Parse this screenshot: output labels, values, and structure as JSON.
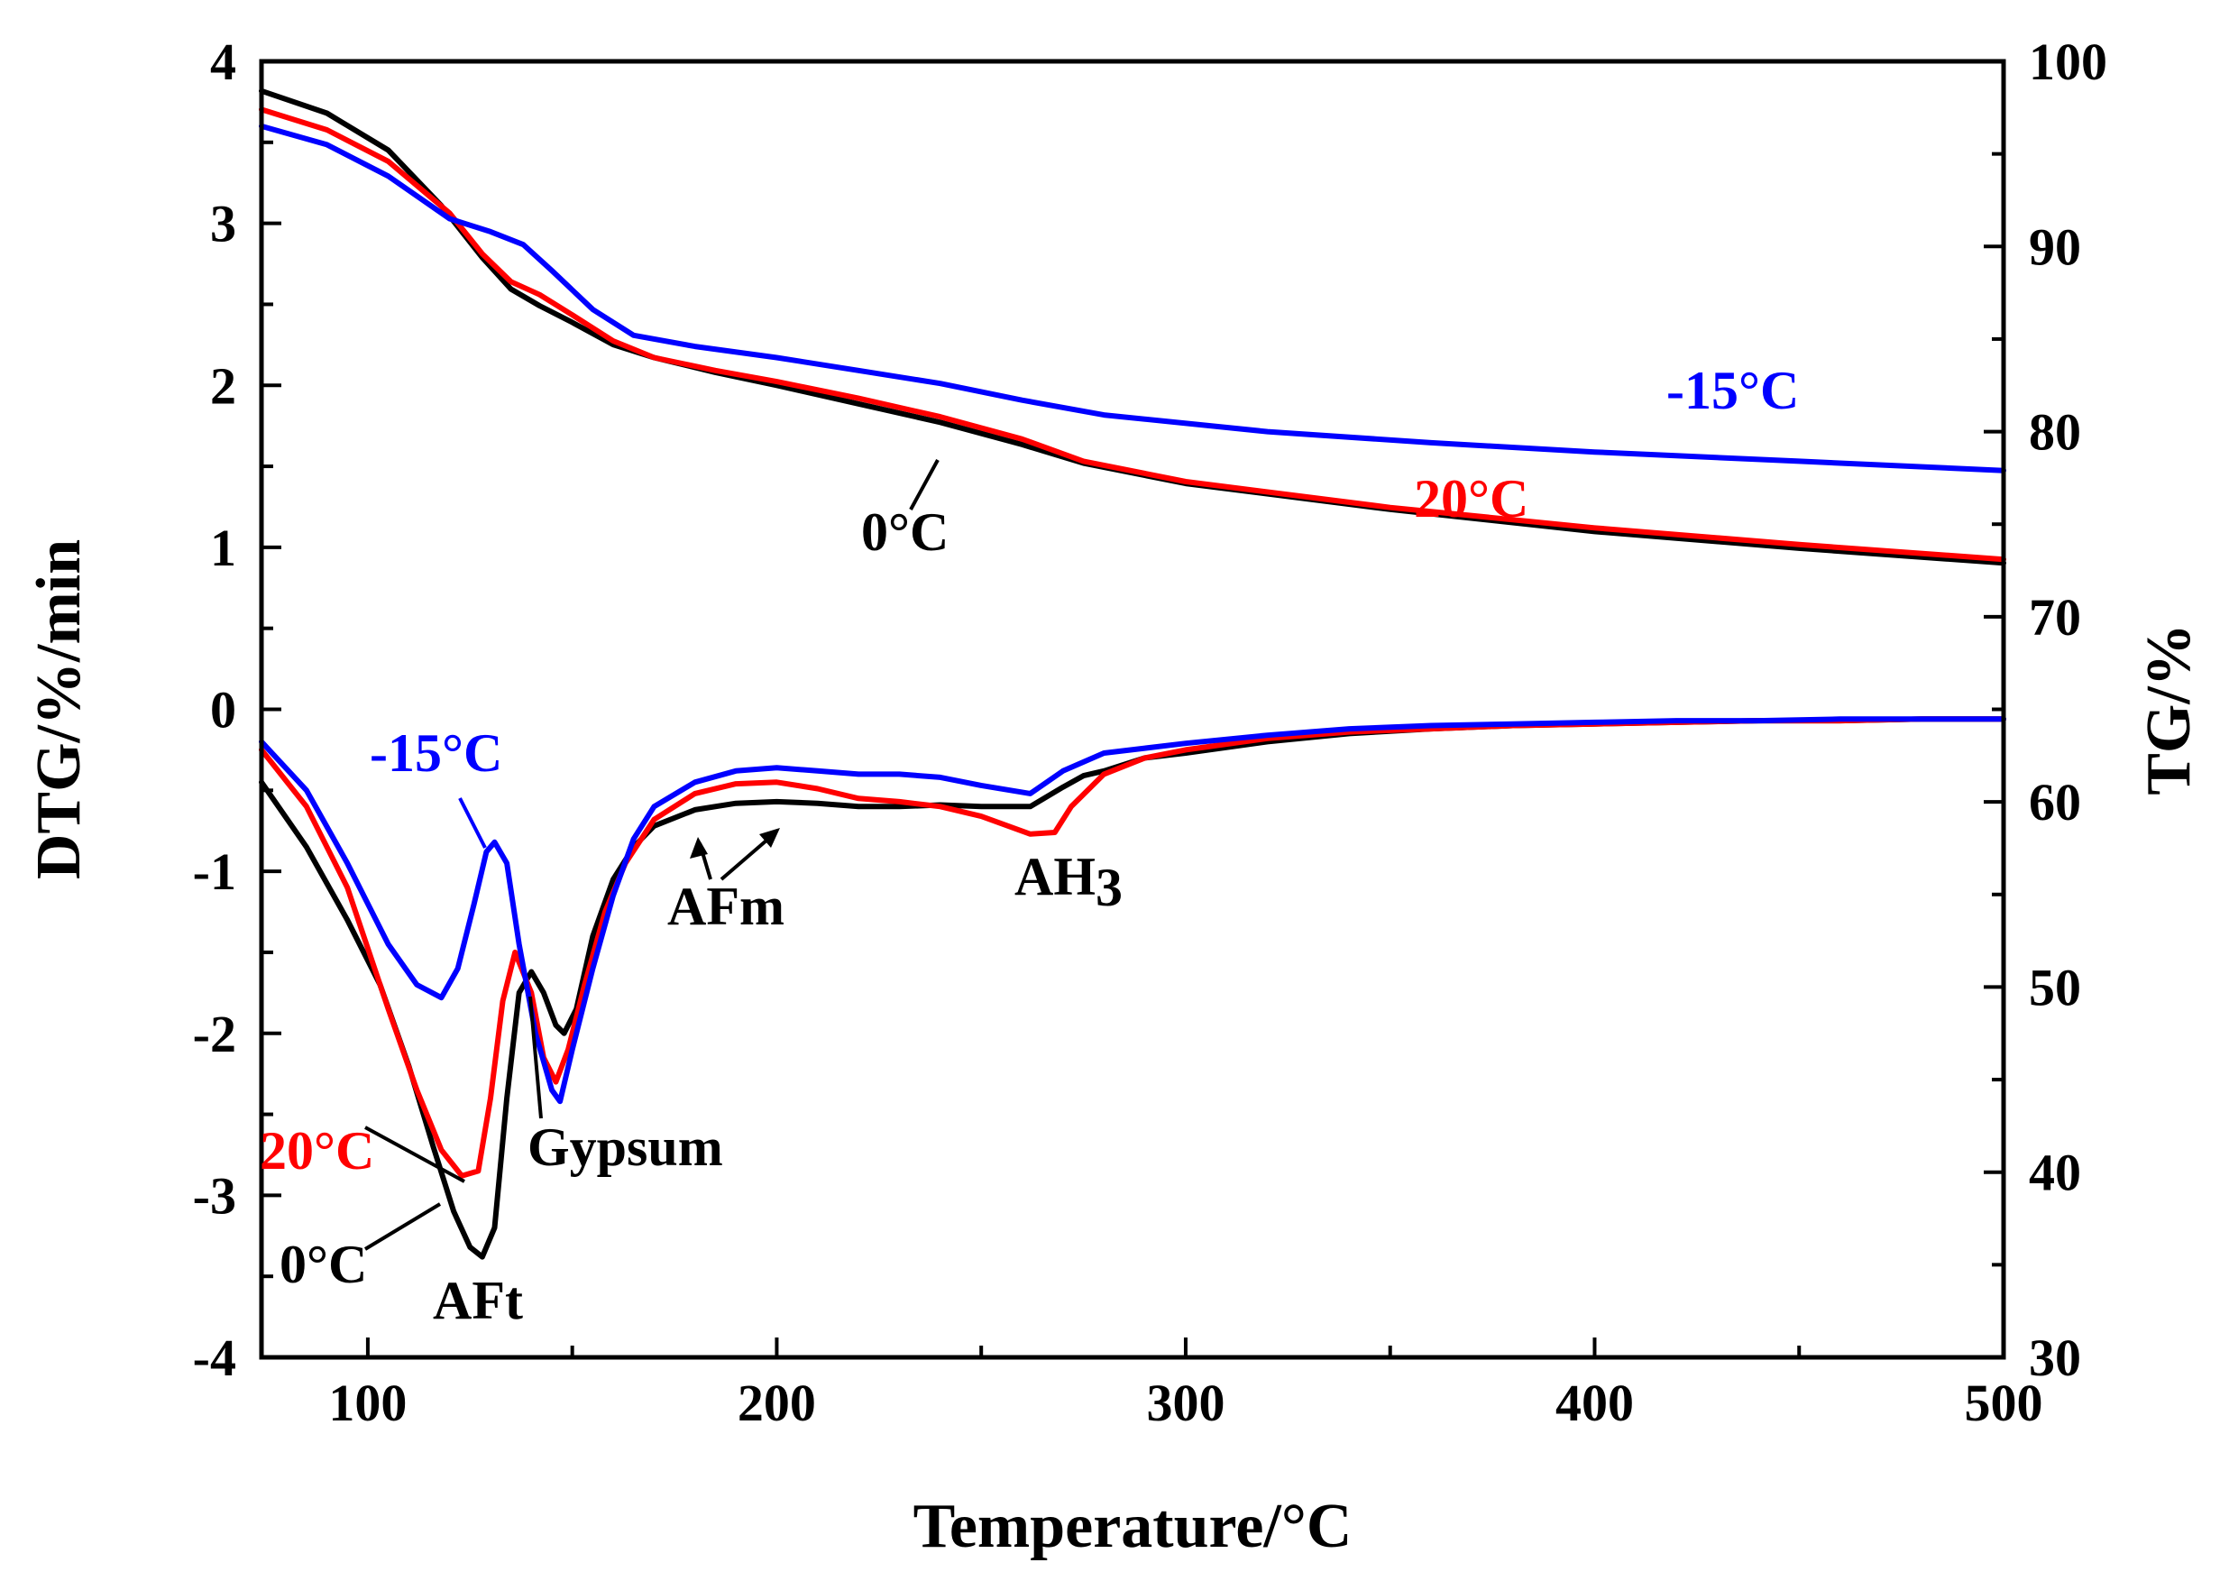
{
  "chart_data": {
    "type": "line",
    "xlabel": "Temperature/°C",
    "ylabel_left": "DTG/%/min",
    "ylabel_right": "TG/%",
    "xlim": [
      74,
      500
    ],
    "ylim_left": [
      -4,
      4
    ],
    "ylim_right": [
      30,
      100
    ],
    "x_ticks": [
      "100",
      "200",
      "300",
      "400",
      "500"
    ],
    "y_ticks_left": [
      "4",
      "3",
      "2",
      "1",
      "0",
      "-1",
      "-2",
      "-3",
      "-4"
    ],
    "y_ticks_right": [
      "100",
      "90",
      "80",
      "70",
      "60",
      "50",
      "40",
      "30"
    ],
    "colors": {
      "neg15C": "#0000ff",
      "20C": "#ff0000",
      "0C": "#000000"
    },
    "series": [
      {
        "name": "TG -15°C",
        "axis": "right",
        "color_key": "neg15C",
        "x": [
          74,
          90,
          105,
          120,
          130,
          138,
          145,
          155,
          165,
          180,
          200,
          220,
          240,
          260,
          280,
          320,
          360,
          400,
          450,
          500
        ],
        "y": [
          96.5,
          95.5,
          93.8,
          91.5,
          90.8,
          90.1,
          88.7,
          86.6,
          85.2,
          84.6,
          84.0,
          83.3,
          82.6,
          81.7,
          80.9,
          80.0,
          79.4,
          78.9,
          78.4,
          77.9
        ]
      },
      {
        "name": "TG 20°C",
        "axis": "right",
        "color_key": "20C",
        "x": [
          74,
          90,
          105,
          120,
          128,
          135,
          142,
          150,
          160,
          170,
          185,
          200,
          220,
          240,
          260,
          275,
          300,
          350,
          400,
          450,
          500
        ],
        "y": [
          97.4,
          96.3,
          94.6,
          91.8,
          89.6,
          88.1,
          87.4,
          86.3,
          84.9,
          84.0,
          83.3,
          82.7,
          81.8,
          80.8,
          79.6,
          78.4,
          77.3,
          75.9,
          74.8,
          73.9,
          73.1
        ]
      },
      {
        "name": "TG 0°C",
        "axis": "right",
        "color_key": "0C",
        "x": [
          74,
          90,
          105,
          118,
          128,
          135,
          142,
          150,
          160,
          170,
          185,
          200,
          220,
          240,
          260,
          275,
          300,
          350,
          400,
          450,
          500
        ],
        "y": [
          98.4,
          97.2,
          95.2,
          92.2,
          89.4,
          87.7,
          86.8,
          85.9,
          84.7,
          84.0,
          83.2,
          82.5,
          81.5,
          80.5,
          79.3,
          78.3,
          77.2,
          75.8,
          74.6,
          73.7,
          72.9
        ]
      },
      {
        "name": "DTG -15°C",
        "axis": "left",
        "color_key": "neg15C",
        "x": [
          74,
          85,
          95,
          105,
          112,
          118,
          122,
          126,
          129,
          131,
          134,
          137,
          141,
          145,
          147,
          150,
          155,
          160,
          165,
          170,
          180,
          190,
          200,
          210,
          220,
          230,
          240,
          250,
          262,
          270,
          280,
          290,
          300,
          320,
          340,
          360,
          380,
          400,
          420,
          440,
          460,
          480,
          500
        ],
        "y": [
          -0.2,
          -0.5,
          -0.95,
          -1.45,
          -1.7,
          -1.78,
          -1.6,
          -1.2,
          -0.88,
          -0.82,
          -0.95,
          -1.45,
          -2.0,
          -2.35,
          -2.42,
          -2.1,
          -1.6,
          -1.15,
          -0.8,
          -0.6,
          -0.45,
          -0.38,
          -0.36,
          -0.38,
          -0.4,
          -0.4,
          -0.42,
          -0.47,
          -0.52,
          -0.38,
          -0.27,
          -0.24,
          -0.21,
          -0.16,
          -0.12,
          -0.1,
          -0.09,
          -0.08,
          -0.07,
          -0.07,
          -0.06,
          -0.06,
          -0.06
        ]
      },
      {
        "name": "DTG 20°C",
        "axis": "left",
        "color_key": "20C",
        "x": [
          74,
          85,
          95,
          105,
          112,
          118,
          123,
          127,
          130,
          133,
          136,
          140,
          143,
          146,
          149,
          153,
          158,
          163,
          170,
          180,
          190,
          200,
          210,
          220,
          230,
          240,
          250,
          262,
          268,
          272,
          280,
          290,
          300,
          320,
          340,
          360,
          380,
          400,
          420,
          440,
          460,
          480,
          500
        ],
        "y": [
          -0.25,
          -0.6,
          -1.1,
          -1.85,
          -2.35,
          -2.72,
          -2.88,
          -2.85,
          -2.4,
          -1.8,
          -1.5,
          -1.75,
          -2.15,
          -2.3,
          -2.1,
          -1.7,
          -1.25,
          -0.95,
          -0.68,
          -0.52,
          -0.46,
          -0.45,
          -0.49,
          -0.55,
          -0.57,
          -0.6,
          -0.66,
          -0.77,
          -0.76,
          -0.6,
          -0.4,
          -0.3,
          -0.25,
          -0.18,
          -0.14,
          -0.12,
          -0.1,
          -0.09,
          -0.08,
          -0.07,
          -0.07,
          -0.06,
          -0.06
        ]
      },
      {
        "name": "DTG 0°C",
        "axis": "left",
        "color_key": "0C",
        "x": [
          74,
          85,
          95,
          103,
          110,
          116,
          121,
          125,
          128,
          131,
          134,
          137,
          140,
          143,
          146,
          148,
          151,
          155,
          160,
          165,
          170,
          180,
          190,
          200,
          210,
          220,
          230,
          240,
          250,
          262,
          270,
          275,
          280,
          290,
          300,
          320,
          340,
          360,
          380,
          400,
          420,
          440,
          460,
          480,
          500
        ],
        "y": [
          -0.45,
          -0.85,
          -1.3,
          -1.7,
          -2.2,
          -2.7,
          -3.1,
          -3.32,
          -3.38,
          -3.2,
          -2.4,
          -1.75,
          -1.62,
          -1.75,
          -1.95,
          -2.0,
          -1.85,
          -1.4,
          -1.05,
          -0.85,
          -0.72,
          -0.62,
          -0.58,
          -0.57,
          -0.58,
          -0.6,
          -0.6,
          -0.59,
          -0.6,
          -0.6,
          -0.48,
          -0.41,
          -0.38,
          -0.3,
          -0.27,
          -0.2,
          -0.15,
          -0.12,
          -0.1,
          -0.09,
          -0.08,
          -0.07,
          -0.07,
          -0.06,
          -0.06
        ]
      }
    ],
    "annotations": {
      "tg_neg15": "-15°C",
      "tg_20": "20°C",
      "tg_0": "0°C",
      "dtg_neg15": "-15°C",
      "dtg_20": "20°C",
      "dtg_0": "0°C",
      "aft": "AFt",
      "gypsum": "Gypsum",
      "afm": "AFm",
      "ah3_main": "AH",
      "ah3_sub": "3"
    }
  }
}
